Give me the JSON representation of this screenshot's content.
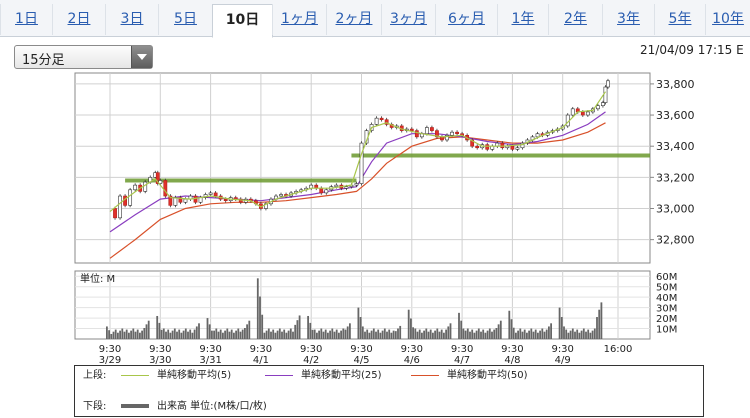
{
  "tabs": [
    {
      "label": "1日",
      "active": false
    },
    {
      "label": "2日",
      "active": false
    },
    {
      "label": "3日",
      "active": false
    },
    {
      "label": "5日",
      "active": false
    },
    {
      "label": "10日",
      "active": true
    },
    {
      "label": "1ヶ月",
      "active": false
    },
    {
      "label": "2ヶ月",
      "active": false
    },
    {
      "label": "3ヶ月",
      "active": false
    },
    {
      "label": "6ヶ月",
      "active": false
    },
    {
      "label": "1年",
      "active": false
    },
    {
      "label": "2年",
      "active": false
    },
    {
      "label": "3年",
      "active": false
    },
    {
      "label": "5年",
      "active": false
    },
    {
      "label": "10年",
      "active": false
    }
  ],
  "interval_select": {
    "value": "15分足"
  },
  "timestamp": "21/04/09 17:15 E",
  "legend": {
    "upper_label": "上段:",
    "lower_label": "下段:",
    "items": [
      {
        "label": "単純移動平均(5)",
        "color": "#a8c64a"
      },
      {
        "label": "単純移動平均(25)",
        "color": "#8a3ec0"
      },
      {
        "label": "単純移動平均(50)",
        "color": "#d8512a"
      }
    ],
    "volume_label": "出来高 単位:(M株/口/枚)",
    "volume_color": "#666666"
  },
  "chart_data": [
    {
      "type": "candlestick",
      "y_ticks": [
        "33,800",
        "33,600",
        "33,400",
        "33,200",
        "33,000",
        "32,800"
      ],
      "y_tick_values": [
        33800,
        33600,
        33400,
        33200,
        33000,
        32800
      ],
      "ylim": [
        32650,
        33870
      ],
      "x_ticks": [
        {
          "time": "9:30",
          "date": "3/29",
          "day": 0
        },
        {
          "time": "9:30",
          "date": "3/30",
          "day": 1
        },
        {
          "time": "9:30",
          "date": "3/31",
          "day": 2
        },
        {
          "time": "9:30",
          "date": "4/1",
          "day": 3
        },
        {
          "time": "9:30",
          "date": "4/2",
          "day": 4
        },
        {
          "time": "9:30",
          "date": "4/5",
          "day": 5
        },
        {
          "time": "9:30",
          "date": "4/6",
          "day": 6
        },
        {
          "time": "9:30",
          "date": "4/7",
          "day": 7
        },
        {
          "time": "9:30",
          "date": "4/8",
          "day": 8
        },
        {
          "time": "9:30",
          "date": "4/9",
          "day": 9
        },
        {
          "time": "16:00",
          "date": "",
          "day": 10
        }
      ],
      "price_series": [
        [
          0,
          33000
        ],
        [
          0.1,
          32940
        ],
        [
          0.2,
          33080
        ],
        [
          0.3,
          33020
        ],
        [
          0.4,
          33120
        ],
        [
          0.5,
          33150
        ],
        [
          0.6,
          33110
        ],
        [
          0.7,
          33170
        ],
        [
          0.8,
          33200
        ],
        [
          0.9,
          33230
        ],
        [
          0.95,
          33160
        ],
        [
          1.0,
          33180
        ],
        [
          1.1,
          33080
        ],
        [
          1.2,
          33020
        ],
        [
          1.3,
          33070
        ],
        [
          1.4,
          33040
        ],
        [
          1.5,
          33060
        ],
        [
          1.6,
          33080
        ],
        [
          1.7,
          33040
        ],
        [
          1.8,
          33070
        ],
        [
          1.9,
          33090
        ],
        [
          2.0,
          33100
        ],
        [
          2.1,
          33080
        ],
        [
          2.2,
          33060
        ],
        [
          2.3,
          33050
        ],
        [
          2.4,
          33070
        ],
        [
          2.5,
          33060
        ],
        [
          2.6,
          33040
        ],
        [
          2.7,
          33060
        ],
        [
          2.8,
          33050
        ],
        [
          2.9,
          33030
        ],
        [
          3.0,
          33000
        ],
        [
          3.1,
          33030
        ],
        [
          3.2,
          33060
        ],
        [
          3.3,
          33080
        ],
        [
          3.4,
          33090
        ],
        [
          3.5,
          33080
        ],
        [
          3.6,
          33100
        ],
        [
          3.7,
          33110
        ],
        [
          3.8,
          33120
        ],
        [
          3.9,
          33130
        ],
        [
          4.0,
          33150
        ],
        [
          4.1,
          33130
        ],
        [
          4.2,
          33100
        ],
        [
          4.3,
          33120
        ],
        [
          4.4,
          33140
        ],
        [
          4.5,
          33150
        ],
        [
          4.6,
          33130
        ],
        [
          4.7,
          33140
        ],
        [
          4.8,
          33150
        ],
        [
          4.9,
          33160
        ],
        [
          5.0,
          33420
        ],
        [
          5.1,
          33500
        ],
        [
          5.2,
          33540
        ],
        [
          5.3,
          33580
        ],
        [
          5.4,
          33570
        ],
        [
          5.5,
          33540
        ],
        [
          5.6,
          33520
        ],
        [
          5.7,
          33530
        ],
        [
          5.8,
          33500
        ],
        [
          5.9,
          33510
        ],
        [
          6.0,
          33500
        ],
        [
          6.1,
          33460
        ],
        [
          6.2,
          33480
        ],
        [
          6.3,
          33520
        ],
        [
          6.4,
          33500
        ],
        [
          6.5,
          33460
        ],
        [
          6.6,
          33440
        ],
        [
          6.7,
          33470
        ],
        [
          6.8,
          33490
        ],
        [
          6.9,
          33480
        ],
        [
          7.0,
          33470
        ],
        [
          7.1,
          33440
        ],
        [
          7.2,
          33400
        ],
        [
          7.3,
          33390
        ],
        [
          7.4,
          33410
        ],
        [
          7.5,
          33380
        ],
        [
          7.6,
          33400
        ],
        [
          7.7,
          33420
        ],
        [
          7.8,
          33390
        ],
        [
          7.9,
          33400
        ],
        [
          8.0,
          33380
        ],
        [
          8.1,
          33390
        ],
        [
          8.2,
          33420
        ],
        [
          8.3,
          33440
        ],
        [
          8.4,
          33460
        ],
        [
          8.5,
          33480
        ],
        [
          8.6,
          33470
        ],
        [
          8.7,
          33490
        ],
        [
          8.8,
          33500
        ],
        [
          8.9,
          33510
        ],
        [
          9.0,
          33530
        ],
        [
          9.1,
          33600
        ],
        [
          9.2,
          33640
        ],
        [
          9.3,
          33620
        ],
        [
          9.4,
          33600
        ],
        [
          9.5,
          33620
        ],
        [
          9.6,
          33640
        ],
        [
          9.7,
          33660
        ],
        [
          9.8,
          33680
        ],
        [
          9.85,
          33780
        ],
        [
          9.9,
          33820
        ]
      ],
      "sma5": [
        [
          0,
          32980
        ],
        [
          0.3,
          33060
        ],
        [
          0.6,
          33130
        ],
        [
          0.9,
          33190
        ],
        [
          1.2,
          33070
        ],
        [
          1.6,
          33060
        ],
        [
          2.0,
          33080
        ],
        [
          2.4,
          33060
        ],
        [
          2.8,
          33050
        ],
        [
          3.0,
          33010
        ],
        [
          3.3,
          33060
        ],
        [
          3.7,
          33100
        ],
        [
          4.0,
          33130
        ],
        [
          4.4,
          33130
        ],
        [
          4.8,
          33150
        ],
        [
          5.0,
          33350
        ],
        [
          5.2,
          33520
        ],
        [
          5.5,
          33550
        ],
        [
          5.8,
          33510
        ],
        [
          6.2,
          33480
        ],
        [
          6.6,
          33460
        ],
        [
          7.0,
          33470
        ],
        [
          7.4,
          33400
        ],
        [
          7.8,
          33400
        ],
        [
          8.2,
          33410
        ],
        [
          8.6,
          33470
        ],
        [
          9.0,
          33520
        ],
        [
          9.3,
          33620
        ],
        [
          9.6,
          33630
        ],
        [
          9.85,
          33750
        ]
      ],
      "sma25": [
        [
          0,
          32850
        ],
        [
          0.5,
          32960
        ],
        [
          1.0,
          33060
        ],
        [
          1.5,
          33080
        ],
        [
          2.0,
          33070
        ],
        [
          2.5,
          33060
        ],
        [
          3.0,
          33050
        ],
        [
          3.5,
          33070
        ],
        [
          4.0,
          33090
        ],
        [
          4.5,
          33120
        ],
        [
          4.9,
          33140
        ],
        [
          5.2,
          33300
        ],
        [
          5.5,
          33420
        ],
        [
          6.0,
          33480
        ],
        [
          6.5,
          33480
        ],
        [
          7.0,
          33460
        ],
        [
          7.5,
          33430
        ],
        [
          8.0,
          33410
        ],
        [
          8.5,
          33430
        ],
        [
          9.0,
          33470
        ],
        [
          9.5,
          33540
        ],
        [
          9.85,
          33620
        ]
      ],
      "sma50": [
        [
          0,
          32680
        ],
        [
          0.5,
          32800
        ],
        [
          1.0,
          32930
        ],
        [
          1.5,
          33000
        ],
        [
          2.0,
          33030
        ],
        [
          2.5,
          33040
        ],
        [
          3.0,
          33040
        ],
        [
          3.5,
          33050
        ],
        [
          4.0,
          33070
        ],
        [
          4.5,
          33090
        ],
        [
          4.9,
          33110
        ],
        [
          5.2,
          33190
        ],
        [
          5.5,
          33290
        ],
        [
          6.0,
          33400
        ],
        [
          6.5,
          33450
        ],
        [
          7.0,
          33460
        ],
        [
          7.5,
          33440
        ],
        [
          8.0,
          33420
        ],
        [
          8.5,
          33420
        ],
        [
          9.0,
          33440
        ],
        [
          9.5,
          33490
        ],
        [
          9.85,
          33550
        ]
      ],
      "support_lines": [
        {
          "from": 0.3,
          "to": 4.9,
          "value": 33180
        },
        {
          "from": 4.8,
          "to": 10.8,
          "value": 33340
        }
      ]
    },
    {
      "type": "bar",
      "name": "volume",
      "unit_label": "単位: M",
      "y_ticks": [
        "60M",
        "50M",
        "40M",
        "30M",
        "20M",
        "10M"
      ],
      "y_tick_values": [
        60,
        50,
        40,
        30,
        20,
        10
      ],
      "ylim": [
        0,
        65
      ],
      "daily_open_peak": [
        12,
        22,
        20,
        58,
        22,
        30,
        28,
        25,
        27,
        30
      ],
      "daily_base": 6,
      "daily_close_peak": [
        14,
        12,
        14,
        18,
        12,
        10,
        12,
        14,
        12,
        28
      ]
    }
  ]
}
